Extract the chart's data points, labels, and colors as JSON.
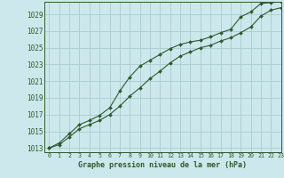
{
  "title": "Graphe pression niveau de la mer (hPa)",
  "background_color": "#cce8ec",
  "grid_color": "#aacccc",
  "line_color": "#2d5a2d",
  "xlim": [
    -0.5,
    23
  ],
  "ylim": [
    1012.5,
    1030.5
  ],
  "yticks": [
    1013,
    1015,
    1017,
    1019,
    1021,
    1023,
    1025,
    1027,
    1029
  ],
  "xticks": [
    0,
    1,
    2,
    3,
    4,
    5,
    6,
    7,
    8,
    9,
    10,
    11,
    12,
    13,
    14,
    15,
    16,
    17,
    18,
    19,
    20,
    21,
    22,
    23
  ],
  "line1_x": [
    0,
    1,
    2,
    3,
    4,
    5,
    6,
    7,
    8,
    9,
    10,
    11,
    12,
    13,
    14,
    15,
    16,
    17,
    18,
    19,
    20,
    21,
    22,
    23
  ],
  "line1_y": [
    1013.0,
    1013.4,
    1014.3,
    1015.3,
    1015.8,
    1016.3,
    1017.0,
    1018.0,
    1019.2,
    1020.2,
    1021.3,
    1022.2,
    1023.2,
    1024.0,
    1024.5,
    1025.0,
    1025.3,
    1025.8,
    1026.2,
    1026.8,
    1027.5,
    1028.8,
    1029.5,
    1029.8
  ],
  "line2_x": [
    0,
    1,
    2,
    3,
    4,
    5,
    6,
    7,
    8,
    9,
    10,
    11,
    12,
    13,
    14,
    15,
    16,
    17,
    18,
    19,
    20,
    21,
    22,
    23
  ],
  "line2_y": [
    1013.0,
    1013.6,
    1014.7,
    1015.8,
    1016.3,
    1016.9,
    1017.8,
    1019.8,
    1021.5,
    1022.8,
    1023.5,
    1024.2,
    1024.9,
    1025.4,
    1025.7,
    1025.9,
    1026.3,
    1026.8,
    1027.2,
    1028.7,
    1029.3,
    1030.3,
    1030.4,
    1030.5
  ]
}
